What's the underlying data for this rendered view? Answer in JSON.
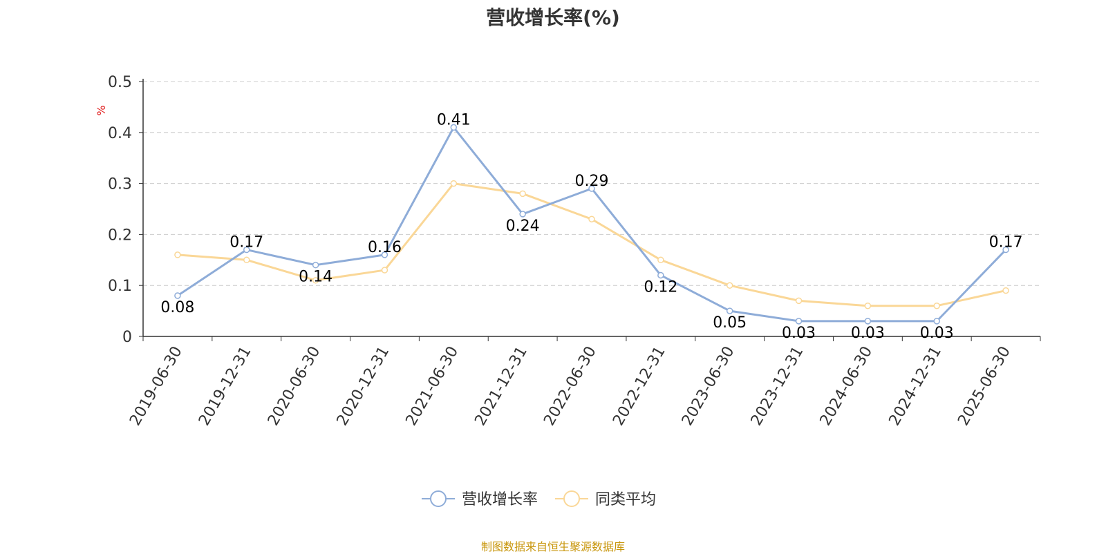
{
  "chart_data": {
    "type": "line",
    "title": "营收增长率(%)",
    "ylabel": "%",
    "xlabel": "",
    "ylim": [
      0,
      0.5
    ],
    "yticks": [
      "0",
      "0.1",
      "0.2",
      "0.3",
      "0.4",
      "0.5"
    ],
    "grid": "horizontal-dashed",
    "legend_position": "bottom-center",
    "categories": [
      "2019-06-30",
      "2019-12-31",
      "2020-06-30",
      "2020-12-31",
      "2021-06-30",
      "2021-12-31",
      "2022-06-30",
      "2022-12-31",
      "2023-06-30",
      "2023-12-31",
      "2024-06-30",
      "2024-12-31",
      "2025-06-30"
    ],
    "series": [
      {
        "name": "营收增长率",
        "color": "#8eacd8",
        "values": [
          0.08,
          0.17,
          0.14,
          0.16,
          0.41,
          0.24,
          0.29,
          0.12,
          0.05,
          0.03,
          0.03,
          0.03,
          0.17
        ],
        "labels": [
          "0.08",
          "0.17",
          "0.14",
          "0.16",
          "0.41",
          "0.24",
          "0.29",
          "0.12",
          "0.05",
          "0.03",
          "0.03",
          "0.03",
          "0.17"
        ]
      },
      {
        "name": "同类平均",
        "color": "#fad797",
        "values": [
          0.16,
          0.15,
          0.11,
          0.13,
          0.3,
          0.28,
          0.23,
          0.15,
          0.1,
          0.07,
          0.06,
          0.06,
          0.09
        ]
      }
    ]
  },
  "source_note": "制图数据来自恒生聚源数据库",
  "colors": {
    "axis": "#333333",
    "grid": "#cccccc",
    "ylabel": "#e02020",
    "source": "#c8960c"
  }
}
